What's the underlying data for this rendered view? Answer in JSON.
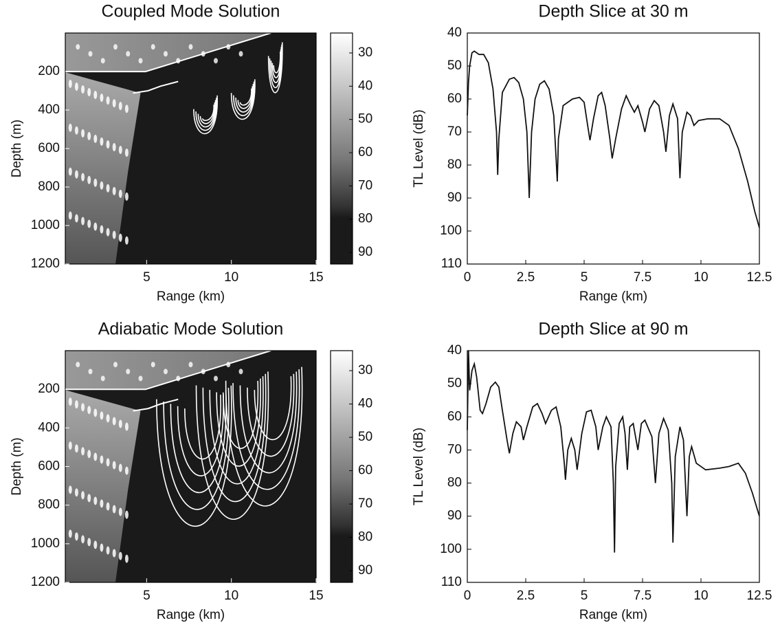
{
  "chart_data": [
    {
      "type": "heatmap",
      "title": "Coupled Mode Solution",
      "xlabel": "Range (km)",
      "ylabel": "Depth (m)",
      "xlim": [
        0.2,
        15
      ],
      "xticks": [
        5,
        10,
        15
      ],
      "ylim": [
        0,
        1200
      ],
      "yticks": [
        200,
        400,
        600,
        800,
        1000,
        1200
      ],
      "yreversed": true,
      "clim": [
        24,
        93.5
      ],
      "cticks": [
        30,
        40,
        50,
        60,
        70,
        80,
        90
      ]
    },
    {
      "type": "line",
      "title": "Depth Slice at 30 m",
      "xlabel": "Range (km)",
      "ylabel": "TL Level (dB)",
      "xlim": [
        0,
        12.5
      ],
      "xticks": [
        0,
        2.5,
        5,
        7.5,
        10,
        12.5
      ],
      "ylim": [
        40,
        110
      ],
      "yticks": [
        40,
        50,
        60,
        70,
        80,
        90,
        100,
        110
      ],
      "yreversed": true,
      "x": [
        0,
        0.05,
        0.1,
        0.2,
        0.3,
        0.5,
        0.7,
        0.9,
        1.1,
        1.25,
        1.3,
        1.35,
        1.5,
        1.8,
        2.0,
        2.2,
        2.4,
        2.55,
        2.65,
        2.75,
        2.9,
        3.1,
        3.3,
        3.5,
        3.7,
        3.8,
        3.85,
        3.9,
        4.1,
        4.5,
        4.8,
        5.0,
        5.15,
        5.25,
        5.4,
        5.6,
        5.75,
        5.9,
        6.1,
        6.2,
        6.35,
        6.6,
        6.8,
        7.0,
        7.15,
        7.3,
        7.5,
        7.6,
        7.8,
        8.0,
        8.2,
        8.4,
        8.5,
        8.65,
        8.8,
        9.0,
        9.1,
        9.2,
        9.4,
        9.55,
        9.7,
        9.9,
        10.3,
        10.8,
        11.2,
        11.6,
        12.0,
        12.3,
        12.5
      ],
      "series": [
        {
          "color": "#111111",
          "values": [
            65,
            55,
            50,
            46,
            45.5,
            46.5,
            46.5,
            49,
            57,
            70,
            83,
            72,
            58,
            54,
            53.5,
            55,
            60,
            70,
            90,
            70,
            60,
            55.5,
            54.5,
            57,
            65,
            78,
            85,
            72,
            62,
            60,
            59.5,
            61,
            68,
            72.5,
            66,
            59,
            58,
            62,
            72,
            78,
            72,
            63,
            59,
            62,
            64,
            62,
            67,
            70,
            63,
            60.5,
            62,
            70,
            76,
            65,
            61.5,
            66,
            84,
            70,
            64,
            65,
            68,
            66.5,
            66,
            66,
            68,
            75,
            85,
            94,
            99
          ]
        }
      ]
    },
    {
      "type": "heatmap",
      "title": "Adiabatic Mode Solution",
      "xlabel": "Range (km)",
      "ylabel": "Depth (m)",
      "xlim": [
        0.2,
        15
      ],
      "xticks": [
        5,
        10,
        15
      ],
      "ylim": [
        0,
        1200
      ],
      "yticks": [
        200,
        400,
        600,
        800,
        1000,
        1200
      ],
      "yreversed": true,
      "clim": [
        24,
        93.5
      ],
      "cticks": [
        30,
        40,
        50,
        60,
        70,
        80,
        90
      ]
    },
    {
      "type": "line",
      "title": "Depth Slice at 90 m",
      "xlabel": "Range (km)",
      "ylabel": "TL Level (dB)",
      "xlim": [
        0,
        12.5
      ],
      "xticks": [
        0,
        2.5,
        5,
        7.5,
        10,
        12.5
      ],
      "ylim": [
        40,
        110
      ],
      "yticks": [
        40,
        50,
        60,
        70,
        80,
        90,
        100,
        110
      ],
      "yreversed": true,
      "x": [
        0,
        0.05,
        0.1,
        0.2,
        0.3,
        0.4,
        0.55,
        0.65,
        0.8,
        1.0,
        1.2,
        1.35,
        1.5,
        1.7,
        1.8,
        1.95,
        2.1,
        2.3,
        2.4,
        2.55,
        2.8,
        3.0,
        3.2,
        3.35,
        3.6,
        3.8,
        4.0,
        4.15,
        4.2,
        4.3,
        4.45,
        4.6,
        4.7,
        4.9,
        5.1,
        5.3,
        5.5,
        5.6,
        5.8,
        5.95,
        6.15,
        6.25,
        6.3,
        6.35,
        6.5,
        6.65,
        6.75,
        6.85,
        6.95,
        7.1,
        7.2,
        7.3,
        7.45,
        7.6,
        7.9,
        8.05,
        8.2,
        8.4,
        8.6,
        8.75,
        8.8,
        8.9,
        9.1,
        9.25,
        9.4,
        9.5,
        9.6,
        9.8,
        10.2,
        10.8,
        11.2,
        11.6,
        11.9,
        12.2,
        12.5
      ],
      "series": [
        {
          "color": "#111111",
          "values": [
            64,
            40,
            52,
            46,
            44,
            48,
            58,
            59,
            56,
            51,
            49.5,
            51,
            58,
            67,
            71,
            65,
            61.5,
            63,
            67,
            63,
            57,
            56,
            59,
            62,
            58,
            57,
            63,
            74,
            79,
            70,
            66.5,
            70,
            76,
            65,
            58.5,
            58,
            63,
            70,
            63,
            60,
            63,
            80,
            101,
            75,
            62,
            60,
            65,
            76,
            63,
            62,
            66,
            70,
            62,
            61,
            66,
            80,
            65,
            60.5,
            64,
            80,
            98,
            72,
            63,
            67,
            90,
            72,
            69,
            74,
            76,
            75.5,
            75,
            74,
            77,
            83,
            90
          ]
        }
      ]
    }
  ]
}
